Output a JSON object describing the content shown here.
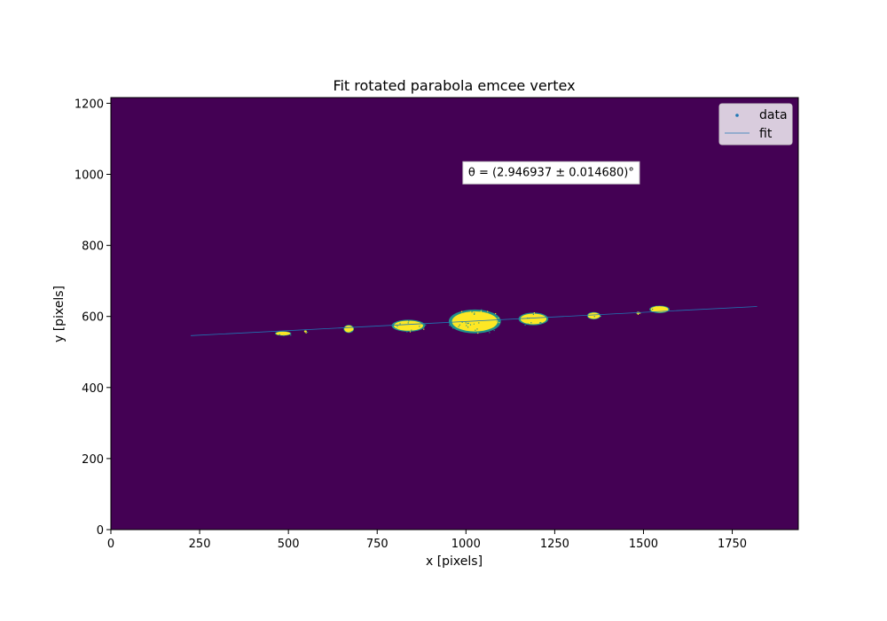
{
  "chart_data": {
    "type": "scatter",
    "title": "Fit rotated parabola emcee vertex",
    "xlabel": "x [pixels]",
    "ylabel": "y [pixels]",
    "xlim": [
      0,
      1936
    ],
    "ylim": [
      0,
      1216
    ],
    "xticks": [
      0,
      250,
      500,
      750,
      1000,
      1250,
      1500,
      1750
    ],
    "yticks": [
      0,
      200,
      400,
      600,
      800,
      1000,
      1200
    ],
    "background_color": "#440154",
    "data_color": "#fde725",
    "data_edge_color": "#21918c",
    "fit_color": "#1f77b4",
    "legend": {
      "placement": "top-right",
      "entries": [
        {
          "label": "data",
          "marker": "dot",
          "color": "#1f77b4"
        },
        {
          "label": "fit",
          "marker": "line",
          "color": "#1f77b4"
        }
      ]
    },
    "annotation": {
      "text": "θ = (2.946937 ± 0.014680)°",
      "x": 1240,
      "y": 1008
    },
    "fit": {
      "x": [
        225,
        1820
      ],
      "y": [
        546,
        628
      ]
    },
    "clusters": [
      {
        "x": 485,
        "y": 552,
        "rx": 22,
        "ry": 6
      },
      {
        "x": 548,
        "y": 558,
        "rx": 4,
        "ry": 3
      },
      {
        "x": 670,
        "y": 565,
        "rx": 14,
        "ry": 11
      },
      {
        "x": 838,
        "y": 574,
        "rx": 45,
        "ry": 16
      },
      {
        "x": 1025,
        "y": 586,
        "rx": 70,
        "ry": 32
      },
      {
        "x": 1190,
        "y": 593,
        "rx": 40,
        "ry": 17
      },
      {
        "x": 1360,
        "y": 602,
        "rx": 18,
        "ry": 10
      },
      {
        "x": 1485,
        "y": 610,
        "rx": 5,
        "ry": 3
      },
      {
        "x": 1545,
        "y": 620,
        "rx": 27,
        "ry": 10
      }
    ]
  }
}
